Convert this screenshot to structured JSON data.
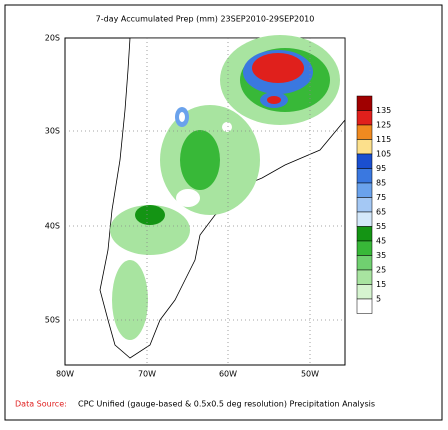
{
  "title": "7-day Accumulated Prep (mm) 23SEP2010-29SEP2010",
  "lat_labels": [
    "20S",
    "30S",
    "40S",
    "50S"
  ],
  "lon_labels": [
    "80W",
    "70W",
    "60W",
    "50W"
  ],
  "legend": {
    "levels": [
      135,
      125,
      115,
      105,
      95,
      85,
      75,
      65,
      55,
      45,
      35,
      25,
      15,
      5
    ],
    "colors": [
      "#a00000",
      "#e0201c",
      "#f08a20",
      "#fce08c",
      "#1a4fd0",
      "#3a78e0",
      "#6aa2ec",
      "#a4c8f4",
      "#d4e8fa",
      "#149414",
      "#38b838",
      "#70d070",
      "#a8e4a0",
      "#d6f4d0",
      "#ffffff"
    ]
  },
  "footer": {
    "source_label": "Data Source:",
    "text": "CPC Unified (gauge-based & 0.5x0.5 deg resolution) Precipitation Analysis"
  }
}
